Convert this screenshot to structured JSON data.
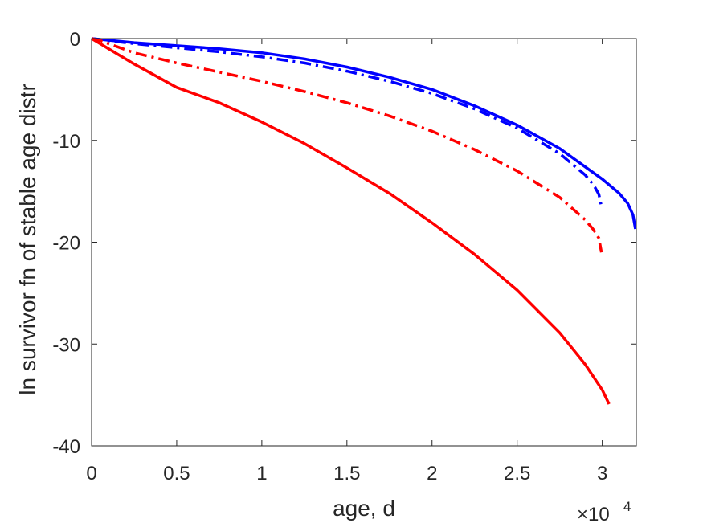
{
  "chart_data": {
    "type": "line",
    "title": "",
    "xlabel": "age, d",
    "ylabel": "ln survivor fn of stable age distr",
    "x_exponent_label": "×10",
    "x_exponent_power": "4",
    "xlim": [
      0,
      32000
    ],
    "ylim": [
      -40,
      0
    ],
    "x_ticks": [
      0,
      5000,
      10000,
      15000,
      20000,
      25000,
      30000
    ],
    "x_tick_labels": [
      "0",
      "0.5",
      "1",
      "1.5",
      "2",
      "2.5",
      "3"
    ],
    "y_ticks": [
      0,
      -10,
      -20,
      -30,
      -40
    ],
    "y_tick_labels": [
      "0",
      "-10",
      "-20",
      "-30",
      "-40"
    ],
    "grid": false,
    "legend": "none",
    "series": [
      {
        "color": "#0000ff",
        "style": "solid",
        "x": [
          0,
          2500,
          5000,
          7500,
          10000,
          12500,
          15000,
          17500,
          20000,
          22500,
          25000,
          27500,
          30000,
          31000,
          31500,
          31800,
          31950
        ],
        "y": [
          0,
          -0.4,
          -0.7,
          -1.0,
          -1.4,
          -2.0,
          -2.8,
          -3.8,
          -5.0,
          -6.6,
          -8.5,
          -10.8,
          -13.8,
          -15.2,
          -16.2,
          -17.3,
          -18.7
        ]
      },
      {
        "color": "#0000ff",
        "style": "dashdot",
        "x": [
          0,
          2500,
          5000,
          7500,
          10000,
          12500,
          15000,
          17500,
          20000,
          22500,
          25000,
          27500,
          29000,
          29500,
          29800,
          29950
        ],
        "y": [
          0,
          -0.5,
          -0.9,
          -1.3,
          -1.8,
          -2.4,
          -3.2,
          -4.2,
          -5.4,
          -6.9,
          -8.8,
          -11.3,
          -13.4,
          -14.4,
          -15.3,
          -16.5
        ]
      },
      {
        "color": "#ff0000",
        "style": "dashdot",
        "x": [
          0,
          500,
          1000,
          2500,
          5000,
          7500,
          10000,
          12500,
          15000,
          17500,
          20000,
          22500,
          25000,
          27500,
          29000,
          29500,
          29800,
          29950
        ],
        "y": [
          0,
          -0.2,
          -0.5,
          -1.4,
          -2.4,
          -3.3,
          -4.2,
          -5.2,
          -6.3,
          -7.6,
          -9.1,
          -10.9,
          -13.0,
          -15.6,
          -17.8,
          -18.8,
          -19.6,
          -21.0
        ]
      },
      {
        "color": "#ff0000",
        "style": "solid",
        "x": [
          0,
          2500,
          5000,
          7500,
          10000,
          12500,
          15000,
          17500,
          20000,
          22500,
          25000,
          27500,
          29000,
          30000,
          30400
        ],
        "y": [
          0,
          -2.5,
          -4.8,
          -6.3,
          -8.2,
          -10.3,
          -12.7,
          -15.2,
          -18.1,
          -21.2,
          -24.7,
          -28.9,
          -32.0,
          -34.5,
          -35.9
        ]
      }
    ]
  }
}
